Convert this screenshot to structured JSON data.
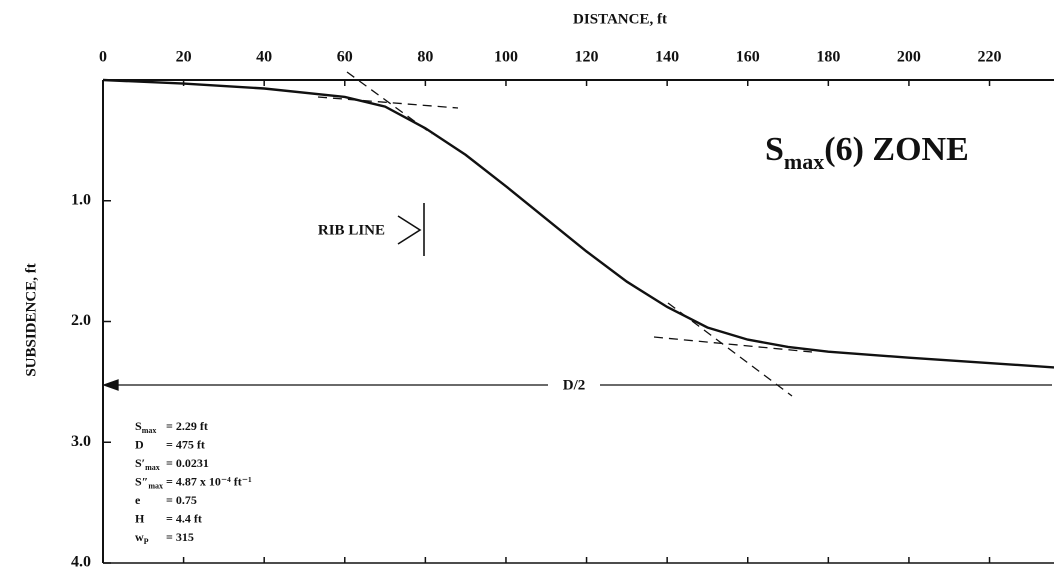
{
  "chart_data": {
    "type": "line",
    "x_label": "DISTANCE, ft",
    "y_label": "SUBSIDENCE, ft",
    "x": [
      0,
      20,
      40,
      60,
      70,
      80,
      90,
      100,
      110,
      120,
      130,
      140,
      150,
      160,
      170,
      180,
      200,
      236
    ],
    "values": [
      0,
      0.03,
      0.07,
      0.14,
      0.22,
      0.4,
      0.62,
      0.88,
      1.15,
      1.42,
      1.67,
      1.88,
      2.05,
      2.15,
      2.21,
      2.25,
      2.3,
      2.38
    ],
    "color": "#111111",
    "xlim": [
      0,
      236
    ],
    "xticks": [
      0,
      20,
      40,
      60,
      80,
      100,
      120,
      140,
      160,
      180,
      200,
      220
    ],
    "ylim": [
      0,
      4
    ],
    "yticks": [
      {
        "value": 1,
        "label": "1.0"
      },
      {
        "value": 2,
        "label": "2.0"
      },
      {
        "value": 3,
        "label": "3.0"
      },
      {
        "value": 4,
        "label": "4.0"
      }
    ],
    "zone_label": {
      "main": "S",
      "sub": "max",
      "rest": "(6) ZONE"
    },
    "rib_label": "RIB LINE",
    "half_width_label": "D/2",
    "parameters": [
      {
        "symbol": "S",
        "sub": "max",
        "text": "= 2.29 ft"
      },
      {
        "symbol": "D",
        "sub": "",
        "text": "= 475 ft"
      },
      {
        "symbol": "S′",
        "sub": "max",
        "text": "= 0.0231"
      },
      {
        "symbol": "S″",
        "sub": "max",
        "text": "= 4.87 x 10⁻⁴ ft⁻¹"
      },
      {
        "symbol": "e",
        "sub": "",
        "text": "= 0.75"
      },
      {
        "symbol": "H",
        "sub": "",
        "text": "= 4.4 ft"
      },
      {
        "symbol": "w",
        "sub": "P",
        "text": "= 315"
      }
    ]
  }
}
